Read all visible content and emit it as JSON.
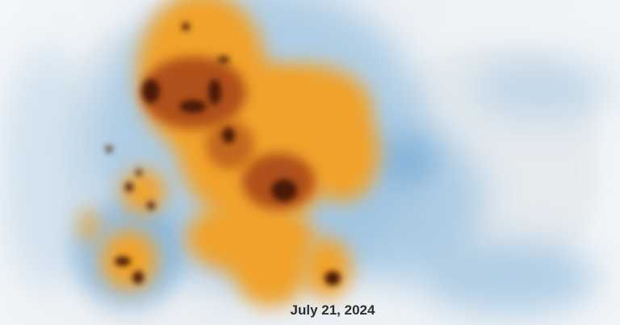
{
  "map": {
    "date_label": "July 21, 2024",
    "legend_colors": {
      "low": "#9ec3e0",
      "medium": "#f0a22a",
      "high": "#4a1a06"
    }
  }
}
